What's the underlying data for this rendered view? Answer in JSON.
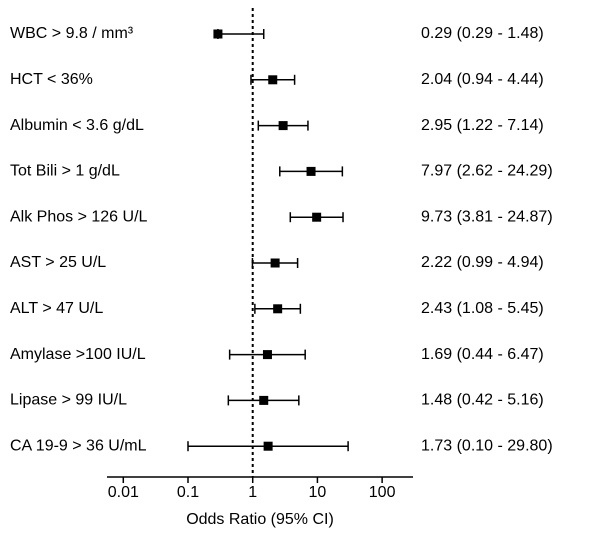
{
  "chart_data": {
    "type": "forest",
    "categories": [
      "WBC > 9.8 / mm³",
      "HCT < 36%",
      "Albumin < 3.6 g/dL",
      "Tot Bili > 1 g/dL",
      "Alk Phos > 126 U/L",
      "AST > 25 U/L",
      "ALT > 47 U/L",
      "Amylase >100 IU/L",
      "Lipase > 99 IU/L",
      "CA 19-9 > 36 U/mL"
    ],
    "values": [
      0.29,
      2.04,
      2.95,
      7.97,
      9.73,
      2.22,
      2.43,
      1.69,
      1.48,
      1.73
    ],
    "lower": [
      0.29,
      0.94,
      1.22,
      2.62,
      3.81,
      0.99,
      1.08,
      0.44,
      0.42,
      0.1
    ],
    "upper": [
      1.48,
      4.44,
      7.14,
      24.29,
      24.87,
      4.94,
      5.45,
      6.47,
      5.16,
      29.8
    ],
    "value_labels": [
      "0.29 (0.29 - 1.48)",
      "2.04 (0.94 - 4.44)",
      "2.95 (1.22 - 7.14)",
      "7.97 (2.62 - 24.29)",
      "9.73 (3.81 - 24.87)",
      "2.22 (0.99 - 4.94)",
      "2.43 (1.08 - 5.45)",
      "1.69 (0.44 - 6.47)",
      "1.48 (0.42 - 5.16)",
      "1.73 (0.10 - 29.80)"
    ],
    "x_label": "Odds Ratio (95% CI)",
    "xscale": "log",
    "xlim": [
      0.0056,
      300
    ],
    "xticks": [
      0.01,
      0.1,
      1,
      10,
      100
    ],
    "reference": 1,
    "color": "#000000"
  }
}
